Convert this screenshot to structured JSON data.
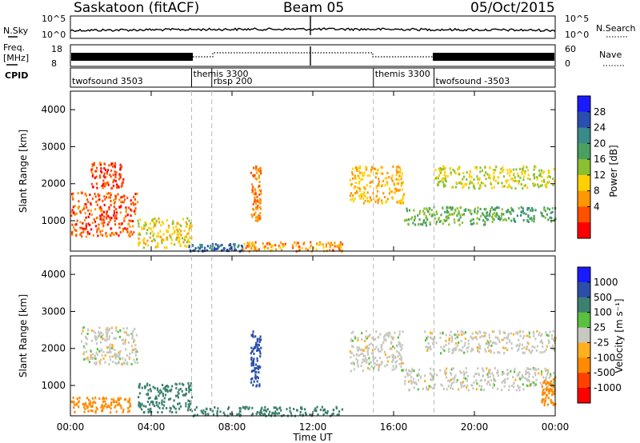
{
  "header": {
    "station": "Saskatoon (fitACF)",
    "beam": "Beam 05",
    "date": "05/Oct/2015"
  },
  "noise_panel": {
    "left_label": "N.Sky",
    "right_label": "N.Search",
    "left_top_tick": "10^5",
    "left_bottom_tick": "10^0",
    "right_top_tick": "10^5",
    "right_bottom_tick": "10^0"
  },
  "freq_panel": {
    "left_label_1": "Freq.",
    "left_label_2": "[MHz]",
    "left_top_tick": "18",
    "left_bottom_tick": "8",
    "right_top_tick": "60",
    "right_bottom_tick": "0",
    "right_label": "Nave"
  },
  "cpid_panel": {
    "label": "CPID",
    "modes": [
      {
        "name": "twofsound 3503",
        "start": 0,
        "row": 1
      },
      {
        "name": "themis 3300",
        "start": 6,
        "row": 0
      },
      {
        "name": "rbsp 200",
        "start": 7,
        "row": 1
      },
      {
        "name": "themis 3300",
        "start": 15,
        "row": 0
      },
      {
        "name": "twofsound -3503",
        "start": 18,
        "row": 1
      }
    ],
    "boundaries": [
      6,
      7,
      15,
      18
    ]
  },
  "power_panel": {
    "ylabel": "Slant Range [km]",
    "cbar_label": "Power [dB]",
    "cbar_ticks": [
      "4",
      "8",
      "12",
      "16",
      "20",
      "24",
      "28"
    ]
  },
  "velocity_panel": {
    "ylabel": "Slant Range [km]",
    "cbar_label": "Velocity  [m s⁻¹]",
    "cbar_ticks": [
      "1000",
      "500",
      "100",
      "25",
      "-25",
      "-100",
      "-500",
      "-1000"
    ]
  },
  "x_axis": {
    "label": "Time UT",
    "ticks": [
      "00:00",
      "04:00",
      "08:00",
      "12:00",
      "16:00",
      "20:00",
      "00:00"
    ]
  },
  "colors": {
    "power": [
      "#1a1aff",
      "#2a4fb0",
      "#3a8a8a",
      "#4aa060",
      "#8ac030",
      "#ffd000",
      "#ff9800",
      "#ff5000",
      "#ff0000"
    ],
    "velocity": [
      "#1a1aff",
      "#2b4fa8",
      "#3c8070",
      "#5ac040",
      "#c8c8c0",
      "#ffb020",
      "#ff8a00",
      "#ff4000",
      "#ff0000"
    ]
  },
  "chart_data": [
    {
      "type": "heatmap",
      "title": "Power",
      "xlabel": "Time UT",
      "ylabel": "Slant Range [km]",
      "xlim": [
        0,
        24
      ],
      "ylim": [
        180,
        4500
      ],
      "yticks": [
        1000,
        2000,
        3000,
        4000
      ],
      "colorbar": {
        "label": "Power [dB]",
        "range": [
          0,
          32
        ],
        "ticks": [
          4,
          8,
          12,
          16,
          20,
          24,
          28
        ]
      },
      "regions": [
        {
          "t": [
            0.0,
            3.3
          ],
          "r": [
            600,
            1800
          ],
          "power": 6,
          "spread": 700
        },
        {
          "t": [
            1.0,
            2.6
          ],
          "r": [
            1900,
            2600
          ],
          "power": 5,
          "spread": 250
        },
        {
          "t": [
            3.3,
            6.0
          ],
          "r": [
            300,
            1100
          ],
          "power": 14,
          "spread": 300
        },
        {
          "t": [
            5.8,
            8.5
          ],
          "r": [
            200,
            400
          ],
          "power": 28,
          "spread": 60
        },
        {
          "t": [
            8.5,
            13.5
          ],
          "r": [
            200,
            450
          ],
          "power": 10,
          "spread": 100
        },
        {
          "t": [
            8.9,
            9.4
          ],
          "r": [
            1000,
            2500
          ],
          "power": 8,
          "spread": 300
        },
        {
          "t": [
            13.8,
            16.5
          ],
          "r": [
            1500,
            2500
          ],
          "power": 12,
          "spread": 300
        },
        {
          "t": [
            16.5,
            20.5
          ],
          "r": [
            900,
            1400
          ],
          "power": 20,
          "spread": 200
        },
        {
          "t": [
            20.5,
            24.0
          ],
          "r": [
            1000,
            1400
          ],
          "power": 22,
          "spread": 250
        },
        {
          "t": [
            18.0,
            24.0
          ],
          "r": [
            1900,
            2500
          ],
          "power": 16,
          "spread": 250
        }
      ]
    },
    {
      "type": "heatmap",
      "title": "Velocity",
      "xlabel": "Time UT",
      "ylabel": "Slant Range [km]",
      "xlim": [
        0,
        24
      ],
      "ylim": [
        180,
        4500
      ],
      "yticks": [
        1000,
        2000,
        3000,
        4000
      ],
      "colorbar": {
        "label": "Velocity [m s⁻¹]",
        "ticks": [
          1000,
          500,
          100,
          25,
          -25,
          -100,
          -500,
          -1000
        ]
      },
      "regions": [
        {
          "t": [
            0.0,
            3.0
          ],
          "r": [
            300,
            700
          ],
          "velocity": -100,
          "spread": 200
        },
        {
          "t": [
            0.5,
            3.3
          ],
          "r": [
            1600,
            2600
          ],
          "velocity": 0,
          "spread": 400
        },
        {
          "t": [
            3.3,
            6.0
          ],
          "r": [
            300,
            1100
          ],
          "velocity": 100,
          "spread": 300
        },
        {
          "t": [
            6.0,
            13.5
          ],
          "r": [
            200,
            450
          ],
          "velocity": 100,
          "spread": 100
        },
        {
          "t": [
            8.9,
            9.4
          ],
          "r": [
            1000,
            2500
          ],
          "velocity": 500,
          "spread": 300
        },
        {
          "t": [
            13.8,
            16.5
          ],
          "r": [
            1400,
            2500
          ],
          "velocity": 0,
          "spread": 300
        },
        {
          "t": [
            16.5,
            24.0
          ],
          "r": [
            900,
            1500
          ],
          "velocity": 0,
          "spread": 250
        },
        {
          "t": [
            17.5,
            24.0
          ],
          "r": [
            1900,
            2500
          ],
          "velocity": 0,
          "spread": 250
        },
        {
          "t": [
            23.3,
            24.0
          ],
          "r": [
            500,
            1200
          ],
          "velocity": -100,
          "spread": 300
        }
      ]
    }
  ]
}
